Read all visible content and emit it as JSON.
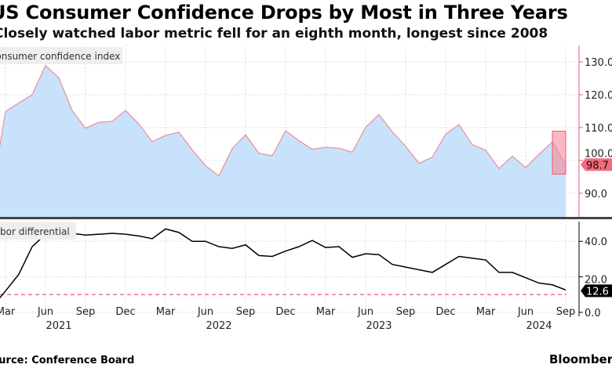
{
  "title": "US Consumer Confidence Drops by Most in Three Years",
  "subtitle": "Closely watched labor metric fell for an eighth month, longest since 2008",
  "source": "Source: Conference Board",
  "brand": "Bloomberg",
  "colors": {
    "confidence_fill": "#c8e2fb",
    "confidence_line": "#f08c9b",
    "axis_top": "#f05a6e",
    "highlight": "#f7889a",
    "labor_line": "#000000",
    "threshold": "#f05a6e"
  },
  "chart_data": [
    {
      "type": "area",
      "panel": "top",
      "series": [
        {
          "name": "Consumer confidence index",
          "legend_label": "Consumer confidence index"
        }
      ],
      "x": [
        "2021-02",
        "2021-03",
        "2021-04",
        "2021-05",
        "2021-06",
        "2021-07",
        "2021-08",
        "2021-09",
        "2021-10",
        "2021-11",
        "2021-12",
        "2022-01",
        "2022-02",
        "2022-03",
        "2022-04",
        "2022-05",
        "2022-06",
        "2022-07",
        "2022-08",
        "2022-09",
        "2022-10",
        "2022-11",
        "2022-12",
        "2023-01",
        "2023-02",
        "2023-03",
        "2023-04",
        "2023-05",
        "2023-06",
        "2023-07",
        "2023-08",
        "2023-09",
        "2023-10",
        "2023-11",
        "2023-12",
        "2024-01",
        "2024-02",
        "2024-03",
        "2024-04",
        "2024-05",
        "2024-06",
        "2024-07",
        "2024-08",
        "2024-09"
      ],
      "values": [
        90.4,
        114.9,
        117.5,
        120.0,
        128.9,
        125.1,
        115.2,
        109.8,
        111.6,
        111.9,
        115.2,
        111.1,
        105.7,
        107.6,
        108.6,
        103.2,
        98.4,
        95.3,
        103.6,
        107.8,
        102.2,
        101.4,
        109.0,
        106.0,
        103.4,
        104.0,
        103.7,
        102.5,
        110.1,
        114.0,
        108.7,
        104.3,
        99.1,
        101.0,
        108.0,
        110.9,
        104.8,
        103.1,
        97.5,
        101.3,
        97.8,
        101.9,
        105.6,
        98.7
      ],
      "last_value_label": "98.7",
      "yticks": [
        "90.0",
        "100.0",
        "110.0",
        "120.0",
        "130.0"
      ],
      "ylim": [
        82.8,
        135
      ],
      "highlight": "Aug–Sep 2024 drop"
    },
    {
      "type": "line",
      "panel": "bottom",
      "series": [
        {
          "name": "Labor differential",
          "legend_label": "Labor differential"
        }
      ],
      "values": [
        3,
        12,
        21.5,
        37,
        44,
        44,
        44.5,
        43.5,
        44,
        44.5,
        44,
        43,
        41.5,
        47,
        45,
        40,
        40,
        37,
        36,
        38,
        32,
        31.5,
        34.5,
        37,
        40.5,
        36.5,
        37,
        31,
        33,
        32.5,
        27,
        25.5,
        24,
        22.5,
        27,
        31.5,
        30.5,
        29.5,
        22.5,
        22.5,
        19.5,
        16.5,
        15.5,
        12.6
      ],
      "threshold": 10,
      "last_value_label": "12.6",
      "yticks": [
        "0.0",
        "20.0",
        "40.0"
      ],
      "ylim": [
        -4,
        52
      ]
    }
  ],
  "xaxis": {
    "months": [
      "Mar",
      "Jun",
      "Sep",
      "Dec",
      "Mar",
      "Jun",
      "Sep",
      "Dec",
      "Mar",
      "Jun",
      "Sep",
      "Dec",
      "Mar",
      "Jun",
      "Sep"
    ],
    "years": [
      "2021",
      "2022",
      "2023",
      "2024"
    ]
  }
}
